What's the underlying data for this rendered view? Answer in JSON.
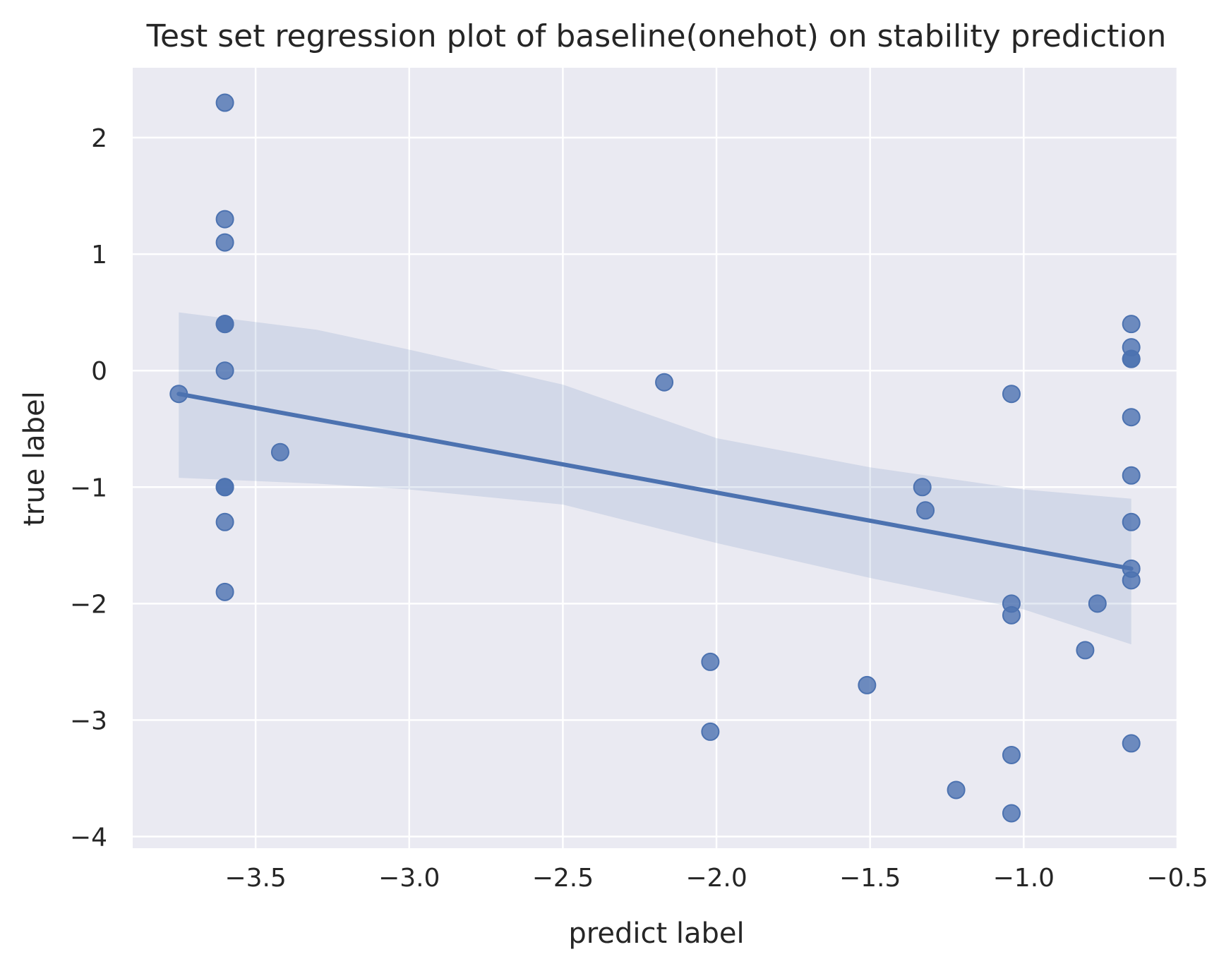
{
  "chart_data": {
    "type": "scatter",
    "title": "Test set regression plot of baseline(onehot) on stability prediction",
    "xlabel": "predict label",
    "ylabel": "true label",
    "xlim": [
      -3.9,
      -0.5
    ],
    "ylim": [
      -4.1,
      2.6
    ],
    "xticks": [
      -3.5,
      -3.0,
      -2.5,
      -2.0,
      -1.5,
      -1.0,
      -0.5
    ],
    "xtick_labels": [
      "−3.5",
      "−3.0",
      "−2.5",
      "−2.0",
      "−1.5",
      "−1.0",
      "−0.5"
    ],
    "yticks": [
      -4,
      -3,
      -2,
      -1,
      0,
      1,
      2
    ],
    "ytick_labels": [
      "−4",
      "−3",
      "−2",
      "−1",
      "0",
      "1",
      "2"
    ],
    "grid": true,
    "colors": {
      "points": "#4c72b0",
      "line": "#4c72b0",
      "band": "#4c72b0",
      "background": "#eaeaf2",
      "grid": "#ffffff"
    },
    "points": [
      {
        "x": -3.6,
        "y": 2.3
      },
      {
        "x": -3.6,
        "y": 1.3
      },
      {
        "x": -3.6,
        "y": 1.1
      },
      {
        "x": -3.6,
        "y": 0.4
      },
      {
        "x": -3.6,
        "y": 0.4
      },
      {
        "x": -3.6,
        "y": 0.0
      },
      {
        "x": -3.75,
        "y": -0.2
      },
      {
        "x": -3.42,
        "y": -0.7
      },
      {
        "x": -3.6,
        "y": -1.0
      },
      {
        "x": -3.6,
        "y": -1.0
      },
      {
        "x": -3.6,
        "y": -1.3
      },
      {
        "x": -3.6,
        "y": -1.9
      },
      {
        "x": -2.17,
        "y": -0.1
      },
      {
        "x": -2.02,
        "y": -2.5
      },
      {
        "x": -2.02,
        "y": -3.1
      },
      {
        "x": -1.51,
        "y": -2.7
      },
      {
        "x": -1.33,
        "y": -1.0
      },
      {
        "x": -1.32,
        "y": -1.2
      },
      {
        "x": -1.22,
        "y": -3.6
      },
      {
        "x": -1.04,
        "y": -0.2
      },
      {
        "x": -1.04,
        "y": -2.0
      },
      {
        "x": -1.04,
        "y": -2.1
      },
      {
        "x": -1.04,
        "y": -3.3
      },
      {
        "x": -1.04,
        "y": -3.8
      },
      {
        "x": -0.8,
        "y": -2.4
      },
      {
        "x": -0.76,
        "y": -2.0
      },
      {
        "x": -0.65,
        "y": 0.4
      },
      {
        "x": -0.65,
        "y": 0.2
      },
      {
        "x": -0.65,
        "y": 0.1
      },
      {
        "x": -0.65,
        "y": 0.1
      },
      {
        "x": -0.65,
        "y": -0.4
      },
      {
        "x": -0.65,
        "y": -0.9
      },
      {
        "x": -0.65,
        "y": -1.3
      },
      {
        "x": -0.65,
        "y": -1.7
      },
      {
        "x": -0.65,
        "y": -1.8
      },
      {
        "x": -0.65,
        "y": -3.2
      }
    ],
    "regression_line": {
      "x": [
        -3.75,
        -0.65
      ],
      "y": [
        -0.2,
        -1.7
      ]
    },
    "confidence_band": [
      {
        "x": -3.75,
        "low": -0.92,
        "high": 0.5
      },
      {
        "x": -3.3,
        "low": -0.97,
        "high": 0.35
      },
      {
        "x": -3.0,
        "low": -1.02,
        "high": 0.18
      },
      {
        "x": -2.5,
        "low": -1.15,
        "high": -0.12
      },
      {
        "x": -2.0,
        "low": -1.48,
        "high": -0.58
      },
      {
        "x": -1.5,
        "low": -1.78,
        "high": -0.83
      },
      {
        "x": -1.0,
        "low": -2.05,
        "high": -1.02
      },
      {
        "x": -0.65,
        "low": -2.35,
        "high": -1.1
      }
    ]
  }
}
